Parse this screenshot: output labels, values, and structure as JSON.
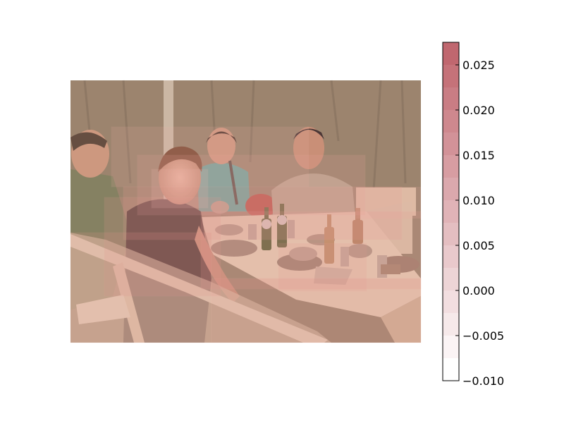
{
  "chart_data": {
    "type": "heatmap",
    "title": "",
    "subtitle": "",
    "xlabel": "",
    "ylabel": "",
    "grid": false,
    "legend": "none",
    "background_image": "photo of four people seated at a wooden table in a tent with bottles, bowls and plates",
    "overlay_description": "translucent red saliency boxes overlaid on the photo",
    "colorbar": {
      "placement": "right",
      "range": [
        -0.01,
        0.0275
      ],
      "ticks": [
        0.025,
        0.02,
        0.015,
        0.01,
        0.005,
        0.0,
        -0.005,
        -0.01
      ],
      "tick_labels": [
        "0.025",
        "0.020",
        "0.015",
        "0.010",
        "0.005",
        "0.000",
        "−0.005",
        "−0.010"
      ],
      "levels": [
        -0.01,
        -0.0075,
        -0.005,
        -0.0025,
        0.0,
        0.0025,
        0.005,
        0.0075,
        0.01,
        0.0125,
        0.015,
        0.0175,
        0.02,
        0.0225,
        0.025,
        0.0275
      ],
      "color_low": "#ffffff",
      "color_high": "#c0676f"
    }
  }
}
